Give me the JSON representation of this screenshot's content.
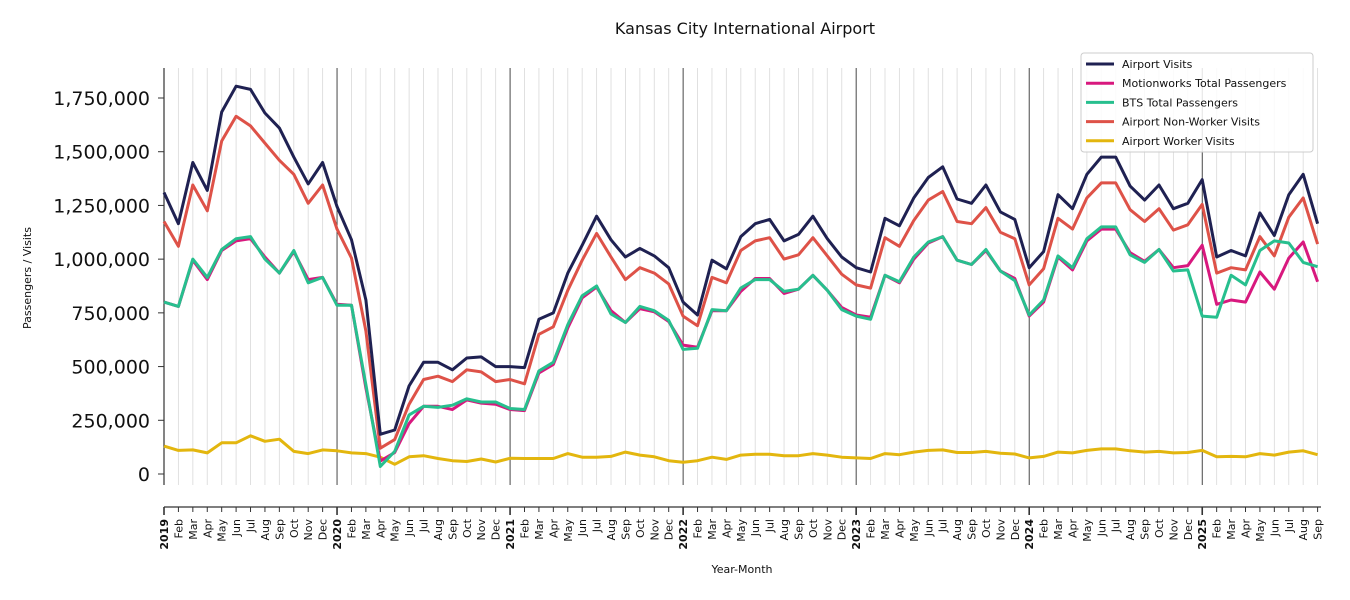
{
  "chart_data": {
    "type": "line",
    "title": "Kansas City International Airport",
    "xlabel": "Year-Month",
    "ylabel": "Passengers / Visits",
    "ylim": [
      -60000,
      1890000
    ],
    "yticks": [
      0,
      250000,
      500000,
      750000,
      1000000,
      1250000,
      1500000,
      1750000
    ],
    "ytick_labels": [
      "0",
      "250,000",
      "500,000",
      "750,000",
      "1,000,000",
      "1,250,000",
      "1,500,000",
      "1,750,000"
    ],
    "grid": "vertical monthly gridlines; darker year separators",
    "legend_position": "top-right",
    "x": [
      "2019",
      "Feb",
      "Mar",
      "Apr",
      "May",
      "Jun",
      "Jul",
      "Aug",
      "Sep",
      "Oct",
      "Nov",
      "Dec",
      "2020",
      "Feb",
      "Mar",
      "Apr",
      "May",
      "Jun",
      "Jul",
      "Aug",
      "Sep",
      "Oct",
      "Nov",
      "Dec",
      "2021",
      "Feb",
      "Mar",
      "Apr",
      "May",
      "Jun",
      "Jul",
      "Aug",
      "Sep",
      "Oct",
      "Nov",
      "Dec",
      "2022",
      "Feb",
      "Mar",
      "Apr",
      "May",
      "Jun",
      "Jul",
      "Aug",
      "Sep",
      "Oct",
      "Nov",
      "Dec",
      "2023",
      "Feb",
      "Mar",
      "Apr",
      "May",
      "Jun",
      "Jul",
      "Aug",
      "Sep",
      "Oct",
      "Nov",
      "Dec",
      "2024",
      "Feb",
      "Mar",
      "Apr",
      "May",
      "Jun",
      "Jul",
      "Aug",
      "Sep",
      "Oct",
      "Nov",
      "Dec",
      "2025",
      "Feb",
      "Mar",
      "Apr",
      "May",
      "Jun",
      "Jul",
      "Aug",
      "Sep"
    ],
    "series": [
      {
        "name": "Airport Visits",
        "color": "#1f2152",
        "values": [
          1310000,
          1165000,
          1450000,
          1320000,
          1685000,
          1805000,
          1790000,
          1680000,
          1610000,
          1475000,
          1350000,
          1450000,
          1245000,
          1090000,
          810000,
          185000,
          205000,
          410000,
          520000,
          520000,
          485000,
          540000,
          545000,
          500000,
          500000,
          495000,
          720000,
          750000,
          935000,
          1065000,
          1200000,
          1090000,
          1010000,
          1050000,
          1015000,
          960000,
          800000,
          740000,
          995000,
          955000,
          1105000,
          1165000,
          1185000,
          1085000,
          1115000,
          1200000,
          1095000,
          1010000,
          960000,
          940000,
          1190000,
          1155000,
          1285000,
          1380000,
          1430000,
          1280000,
          1260000,
          1345000,
          1220000,
          1185000,
          960000,
          1035000,
          1300000,
          1235000,
          1395000,
          1475000,
          1475000,
          1340000,
          1275000,
          1345000,
          1235000,
          1260000,
          1370000,
          1010000,
          1040000,
          1015000,
          1215000,
          1110000,
          1300000,
          1395000,
          1165000
        ]
      },
      {
        "name": "Motionworks Total Passengers",
        "color": "#d8187e",
        "values": [
          800000,
          780000,
          995000,
          905000,
          1040000,
          1085000,
          1095000,
          1010000,
          935000,
          1035000,
          905000,
          915000,
          790000,
          785000,
          400000,
          60000,
          100000,
          235000,
          315000,
          315000,
          300000,
          345000,
          330000,
          325000,
          300000,
          295000,
          470000,
          510000,
          680000,
          820000,
          870000,
          760000,
          705000,
          770000,
          755000,
          710000,
          600000,
          590000,
          760000,
          760000,
          850000,
          910000,
          910000,
          840000,
          860000,
          925000,
          855000,
          775000,
          740000,
          730000,
          925000,
          890000,
          1000000,
          1075000,
          1105000,
          995000,
          975000,
          1040000,
          945000,
          910000,
          735000,
          800000,
          1010000,
          950000,
          1085000,
          1140000,
          1140000,
          1030000,
          990000,
          1045000,
          960000,
          970000,
          1065000,
          790000,
          810000,
          800000,
          940000,
          860000,
          1005000,
          1080000,
          895000
        ]
      },
      {
        "name": "BTS Total Passengers",
        "color": "#27bf8e",
        "values": [
          800000,
          780000,
          1000000,
          915000,
          1045000,
          1095000,
          1105000,
          1000000,
          935000,
          1040000,
          890000,
          915000,
          785000,
          785000,
          415000,
          35000,
          105000,
          275000,
          315000,
          310000,
          320000,
          350000,
          335000,
          335000,
          305000,
          300000,
          480000,
          520000,
          695000,
          830000,
          875000,
          745000,
          705000,
          780000,
          760000,
          715000,
          580000,
          585000,
          765000,
          760000,
          865000,
          905000,
          905000,
          850000,
          860000,
          925000,
          855000,
          765000,
          735000,
          720000,
          925000,
          895000,
          1010000,
          1080000,
          1105000,
          995000,
          975000,
          1045000,
          945000,
          900000,
          740000,
          810000,
          1015000,
          960000,
          1095000,
          1150000,
          1150000,
          1020000,
          985000,
          1045000,
          945000,
          950000,
          735000,
          730000,
          925000,
          880000,
          1040000,
          1085000,
          1075000,
          985000,
          965000
        ]
      },
      {
        "name": "Airport Non-Worker Visits",
        "color": "#de5248",
        "values": [
          1175000,
          1060000,
          1345000,
          1225000,
          1550000,
          1665000,
          1620000,
          1540000,
          1460000,
          1395000,
          1260000,
          1345000,
          1140000,
          1005000,
          665000,
          120000,
          160000,
          325000,
          440000,
          455000,
          430000,
          485000,
          475000,
          430000,
          440000,
          420000,
          650000,
          685000,
          855000,
          995000,
          1120000,
          1010000,
          905000,
          960000,
          935000,
          885000,
          735000,
          690000,
          915000,
          890000,
          1040000,
          1085000,
          1100000,
          1000000,
          1020000,
          1100000,
          1015000,
          930000,
          880000,
          865000,
          1100000,
          1060000,
          1180000,
          1275000,
          1315000,
          1175000,
          1165000,
          1240000,
          1125000,
          1095000,
          880000,
          955000,
          1190000,
          1140000,
          1285000,
          1355000,
          1355000,
          1230000,
          1175000,
          1235000,
          1135000,
          1160000,
          1255000,
          935000,
          960000,
          950000,
          1105000,
          1015000,
          1195000,
          1285000,
          1070000
        ]
      },
      {
        "name": "Airport Worker Visits",
        "color": "#e3b60e",
        "values": [
          130000,
          110000,
          112000,
          98000,
          145000,
          145000,
          178000,
          152000,
          162000,
          105000,
          95000,
          112000,
          108000,
          98000,
          95000,
          78000,
          45000,
          80000,
          85000,
          72000,
          62000,
          58000,
          70000,
          56000,
          73000,
          72000,
          72000,
          72000,
          95000,
          78000,
          78000,
          82000,
          102000,
          88000,
          80000,
          62000,
          55000,
          62000,
          78000,
          68000,
          88000,
          92000,
          92000,
          85000,
          85000,
          95000,
          88000,
          78000,
          75000,
          72000,
          95000,
          90000,
          102000,
          110000,
          112000,
          100000,
          100000,
          105000,
          97000,
          93000,
          75000,
          82000,
          102000,
          98000,
          110000,
          117000,
          117000,
          108000,
          102000,
          105000,
          98000,
          100000,
          110000,
          80000,
          82000,
          80000,
          95000,
          88000,
          102000,
          108000,
          90000
        ]
      }
    ]
  }
}
